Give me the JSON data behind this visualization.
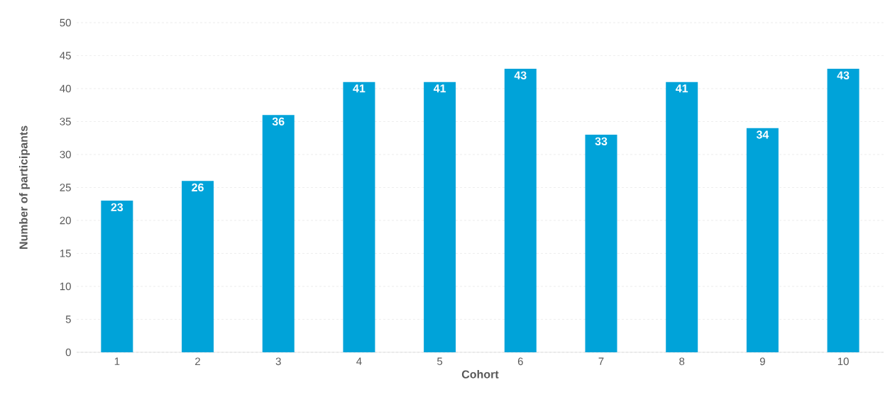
{
  "chart_data": {
    "type": "bar",
    "xlabel": "Cohort",
    "ylabel": "Number of participants",
    "categories": [
      "1",
      "2",
      "3",
      "4",
      "5",
      "6",
      "7",
      "8",
      "9",
      "10"
    ],
    "values": [
      23,
      26,
      36,
      41,
      41,
      43,
      33,
      41,
      34,
      43
    ],
    "color": "#00a3d9",
    "ylim": [
      0,
      50
    ],
    "yticks": [
      0,
      5,
      10,
      15,
      20,
      25,
      30,
      35,
      40,
      45,
      50
    ],
    "grid": "y",
    "data_labels": true
  }
}
